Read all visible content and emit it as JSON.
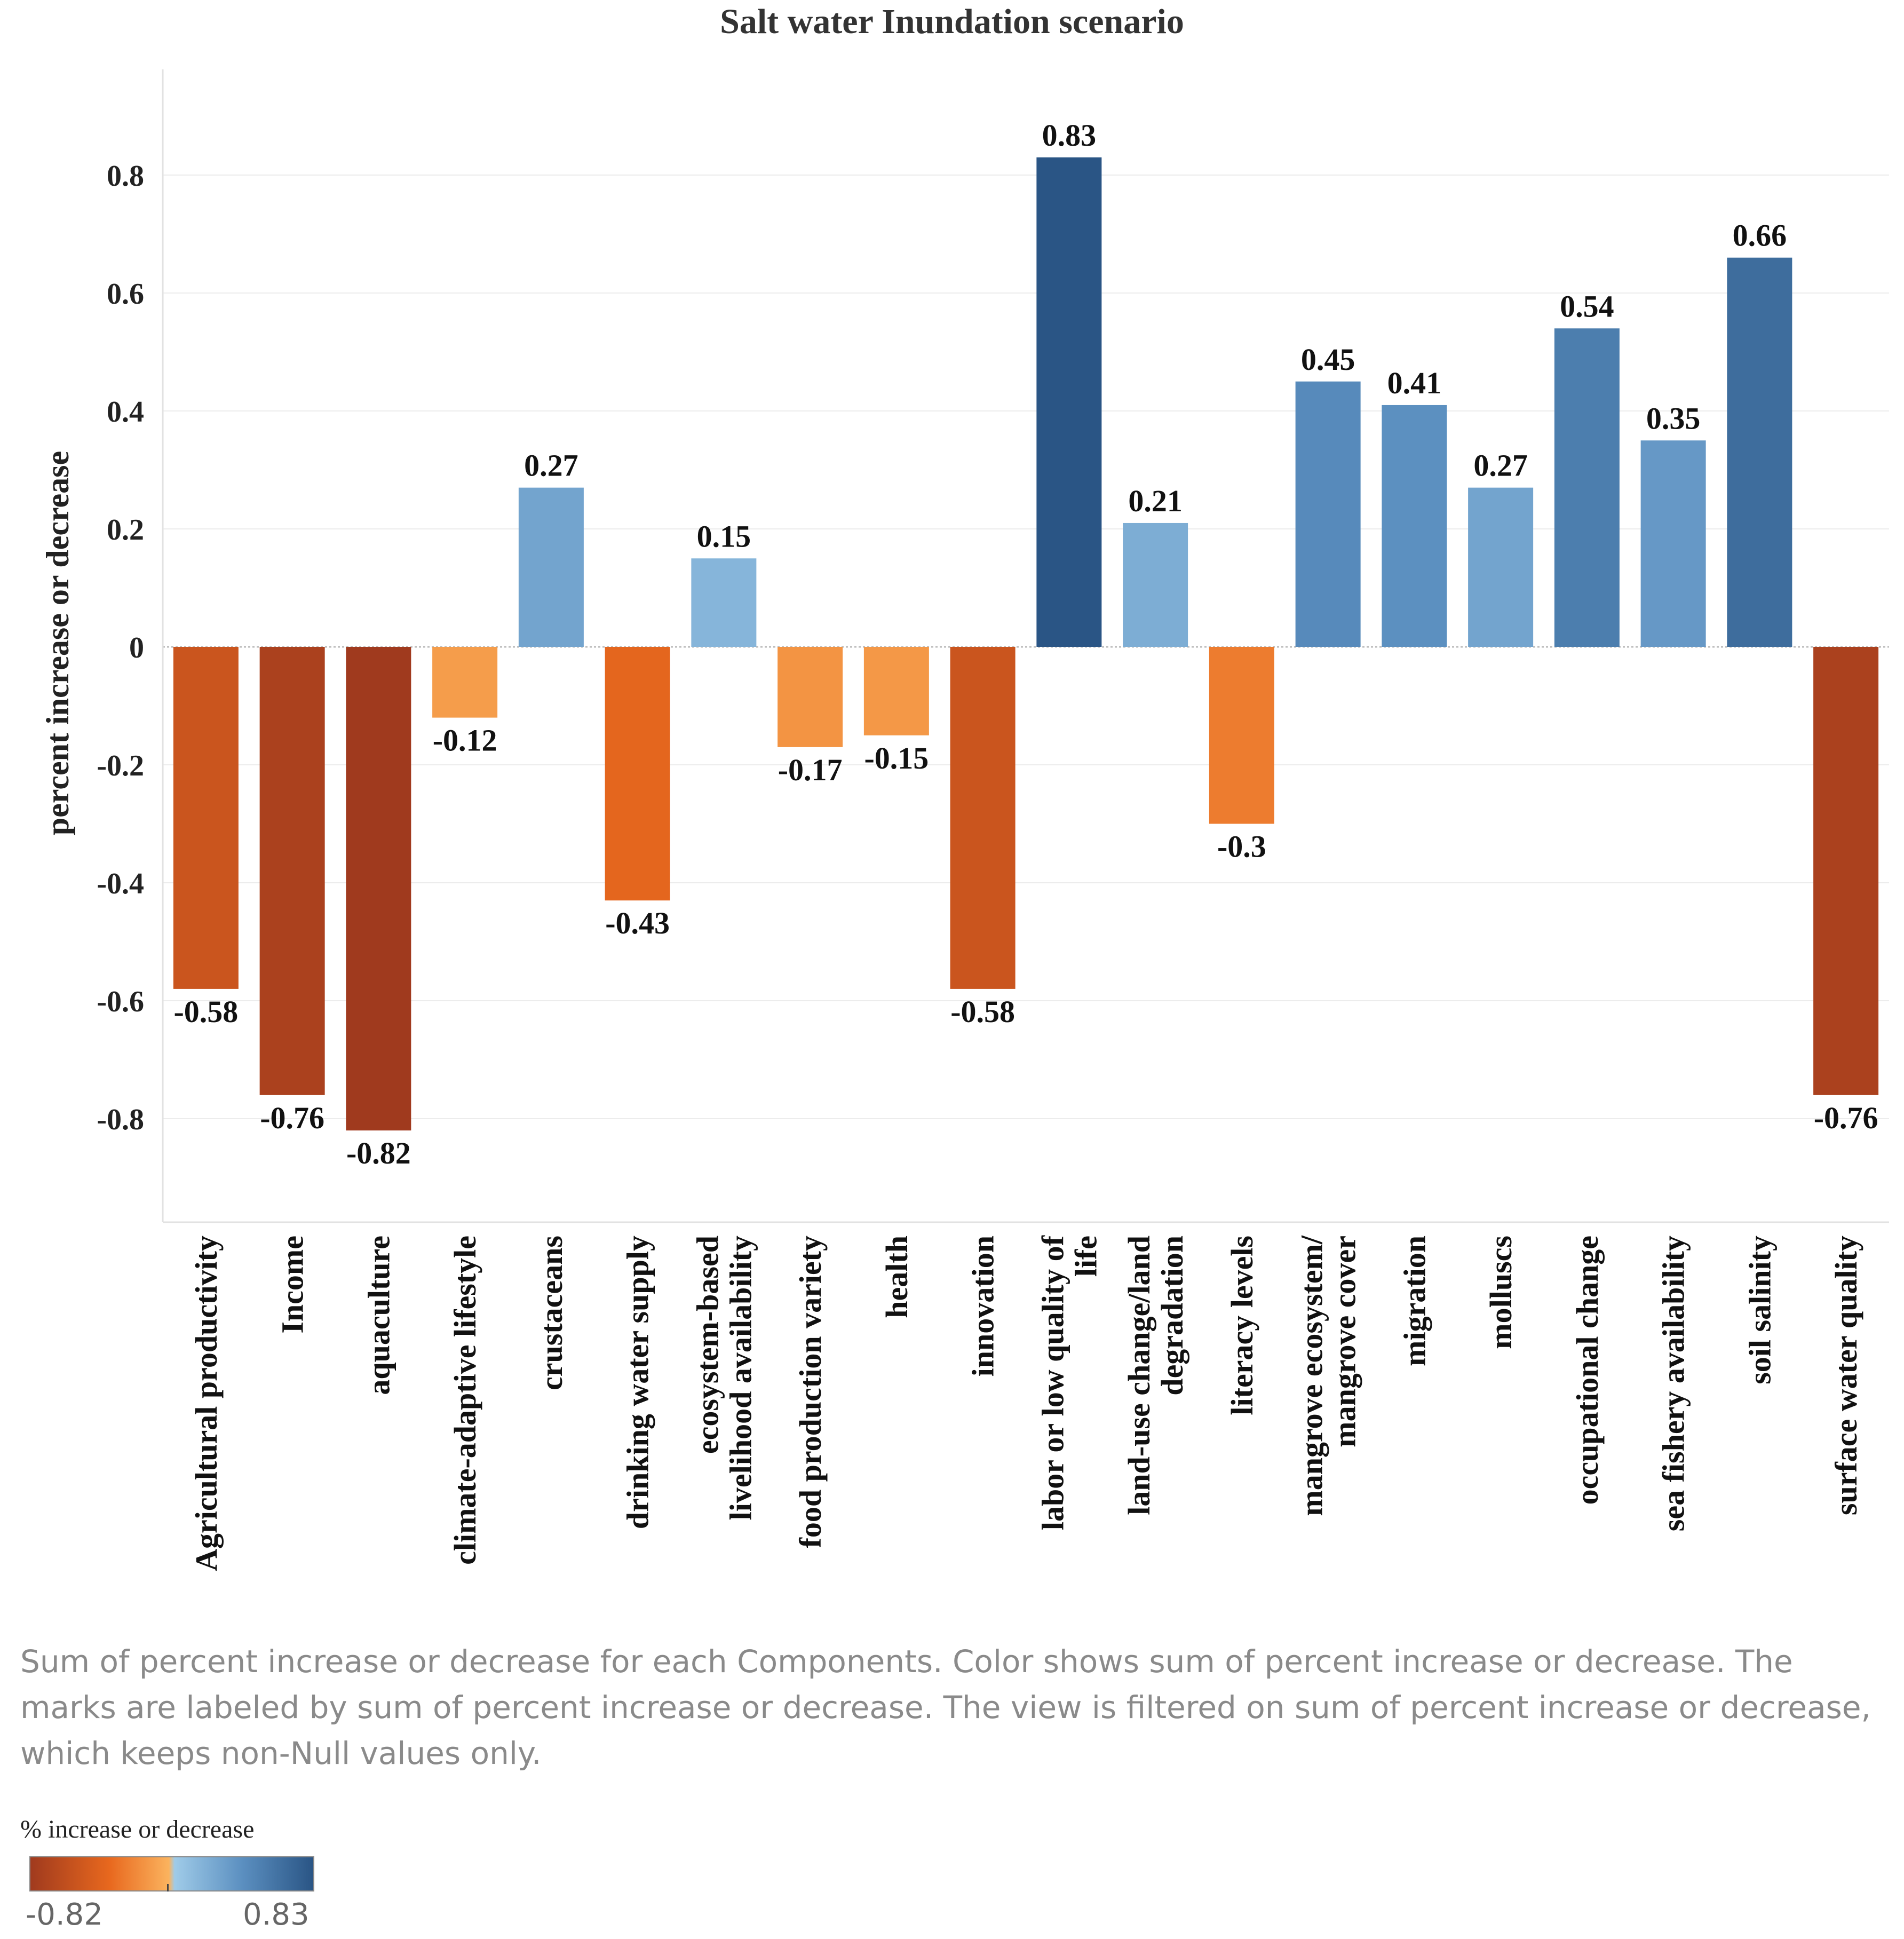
{
  "chart_data": {
    "type": "bar",
    "title": "Salt water Inundation scenario",
    "xlabel": "",
    "ylabel": "percent increase or decrease",
    "ylim": [
      -0.99,
      0.99
    ],
    "yticks": [
      0.8,
      0.6,
      0.4,
      0.2,
      0,
      -0.2,
      -0.4,
      -0.6,
      -0.8
    ],
    "ytick_labels": [
      "0.8",
      "0.6",
      "0.4",
      "0.2",
      "0",
      "-0.2",
      "-0.4",
      "-0.6",
      "-0.8"
    ],
    "grid": true,
    "categories": [
      [
        "Agricultural productivity"
      ],
      [
        "Income"
      ],
      [
        "aquaculture"
      ],
      [
        "climate-adaptive lifestyle"
      ],
      [
        "crustaceans"
      ],
      [
        "drinking water supply"
      ],
      [
        "ecosystem-based",
        "livelihood availability"
      ],
      [
        "food production variety"
      ],
      [
        "health"
      ],
      [
        "innovation"
      ],
      [
        "labor or low quality of",
        "life"
      ],
      [
        "land-use change/land",
        "degradation"
      ],
      [
        "literacy levels"
      ],
      [
        "mangrove ecosystem/",
        "mangrove cover"
      ],
      [
        "migration"
      ],
      [
        "molluscs"
      ],
      [
        "occupational change"
      ],
      [
        "sea fishery availability"
      ],
      [
        "soil salinity"
      ],
      [
        "surface water quality"
      ]
    ],
    "values": [
      -0.58,
      -0.76,
      -0.82,
      -0.12,
      0.27,
      -0.43,
      0.15,
      -0.17,
      -0.15,
      -0.58,
      0.83,
      0.21,
      -0.3,
      0.45,
      0.41,
      0.27,
      0.54,
      0.35,
      0.66,
      -0.76
    ],
    "labels": [
      "-0.58",
      "-0.76",
      "-0.82",
      "-0.12",
      "0.27",
      "-0.43",
      "0.15",
      "-0.17",
      "-0.15",
      "-0.58",
      "0.83",
      "0.21",
      "-0.3",
      "0.45",
      "0.41",
      "0.27",
      "0.54",
      "0.35",
      "0.66",
      "-0.76"
    ],
    "color_scale": {
      "min": -0.82,
      "max": 0.83,
      "colors": [
        "#a03a1e",
        "#e8681e",
        "#fbb35e",
        "#9fcbe8",
        "#5b8fc0",
        "#2a5585"
      ]
    }
  },
  "caption": "Sum of percent increase or decrease for each Components.  Color shows sum of percent increase or decrease.  The marks are labeled by sum of percent increase or decrease. The view is filtered on sum of percent increase or decrease, which keeps non-Null values only.",
  "legend": {
    "title": "% increase or decrease",
    "min_label": "-0.82",
    "max_label": "0.83"
  }
}
